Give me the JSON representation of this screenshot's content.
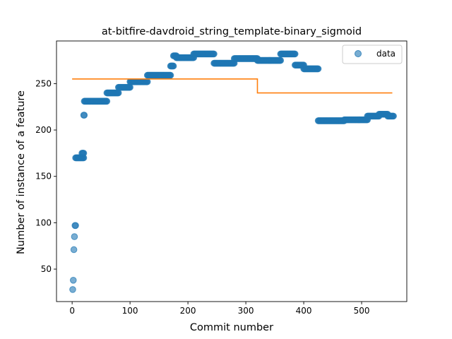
{
  "chart_data": {
    "type": "scatter",
    "title": "at-bitfire-davdroid_string_template-binary_sigmoid",
    "xlabel": "Commit number",
    "ylabel": "Number of instance of a feature",
    "xlim": [
      -27,
      578
    ],
    "ylim": [
      15,
      296
    ],
    "xticks": [
      0,
      100,
      200,
      300,
      400,
      500
    ],
    "yticks": [
      50,
      100,
      150,
      200,
      250
    ],
    "legend": {
      "position": "top-right",
      "entries": [
        "data"
      ]
    },
    "colors": {
      "data": "#1f77b4",
      "fit": "#ff7f0e"
    },
    "series": [
      {
        "name": "data",
        "kind": "scatter",
        "segments": [
          {
            "x": [
              1,
              2,
              3,
              4,
              5,
              6
            ],
            "y": [
              28,
              38,
              71,
              85,
              97,
              97
            ]
          },
          {
            "x_from": 6,
            "x_to": 20,
            "y": 170
          },
          {
            "x_from": 17,
            "x_to": 20,
            "y": 175
          },
          {
            "x_from": 20,
            "x_to": 21,
            "y": 216
          },
          {
            "x_from": 21,
            "x_to": 60,
            "y": 231
          },
          {
            "x_from": 60,
            "x_to": 80,
            "y": 240
          },
          {
            "x_from": 80,
            "x_to": 100,
            "y": 246
          },
          {
            "x_from": 100,
            "x_to": 130,
            "y": 252
          },
          {
            "x_from": 130,
            "x_to": 170,
            "y": 259
          },
          {
            "x_from": 170,
            "x_to": 175,
            "y": 269
          },
          {
            "x_from": 175,
            "x_to": 180,
            "y": 280
          },
          {
            "x_from": 180,
            "x_to": 210,
            "y": 278
          },
          {
            "x_from": 210,
            "x_to": 245,
            "y": 282
          },
          {
            "x_from": 245,
            "x_to": 280,
            "y": 272
          },
          {
            "x_from": 280,
            "x_to": 320,
            "y": 277
          },
          {
            "x_from": 320,
            "x_to": 360,
            "y": 275
          },
          {
            "x_from": 360,
            "x_to": 385,
            "y": 282
          },
          {
            "x_from": 385,
            "x_to": 400,
            "y": 270
          },
          {
            "x_from": 400,
            "x_to": 425,
            "y": 266
          },
          {
            "x_from": 425,
            "x_to": 470,
            "y": 210
          },
          {
            "x_from": 470,
            "x_to": 510,
            "y": 211
          },
          {
            "x_from": 510,
            "x_to": 530,
            "y": 215
          },
          {
            "x_from": 530,
            "x_to": 545,
            "y": 217
          },
          {
            "x_from": 545,
            "x_to": 555,
            "y": 215
          }
        ]
      },
      {
        "name": "",
        "kind": "line",
        "x": [
          0,
          320,
          320,
          553
        ],
        "y": [
          255,
          255,
          240,
          240
        ]
      }
    ]
  }
}
